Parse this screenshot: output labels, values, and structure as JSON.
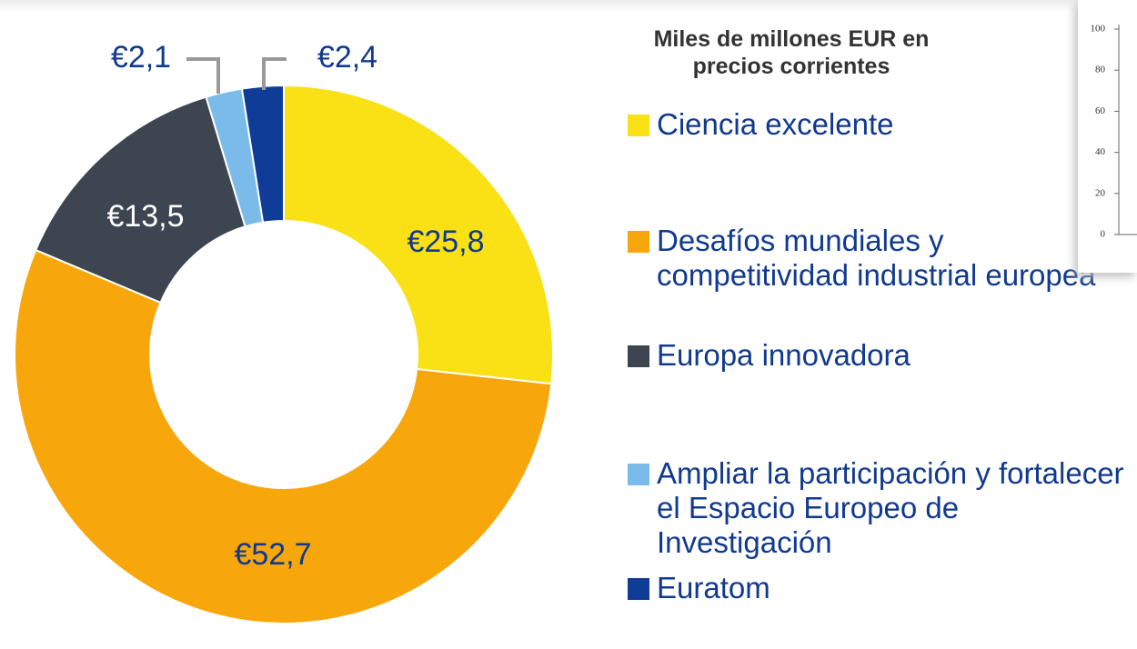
{
  "chart_data": [
    {
      "type": "donut",
      "title": "Miles de millones EUR en precios corrientes",
      "categories": [
        "Ciencia excelente",
        "Desafíos mundiales y competitividad industrial europea",
        "Europa innovadora",
        "Ampliar la participación y fortalecer el Espacio Europeo de Investigación",
        "Euratom"
      ],
      "values": [
        25.8,
        52.7,
        13.5,
        2.1,
        2.4
      ],
      "value_labels": [
        "€25,8",
        "€52,7",
        "€13,5",
        "€2,1",
        "€2,4"
      ],
      "colors": [
        "#f9e116",
        "#f7a70b",
        "#3c4550",
        "#7bbbea",
        "#0f3c96"
      ]
    },
    {
      "type": "axis",
      "ylim": [
        0,
        100
      ],
      "yticks": [
        0,
        20,
        40,
        60,
        80,
        100
      ]
    }
  ]
}
